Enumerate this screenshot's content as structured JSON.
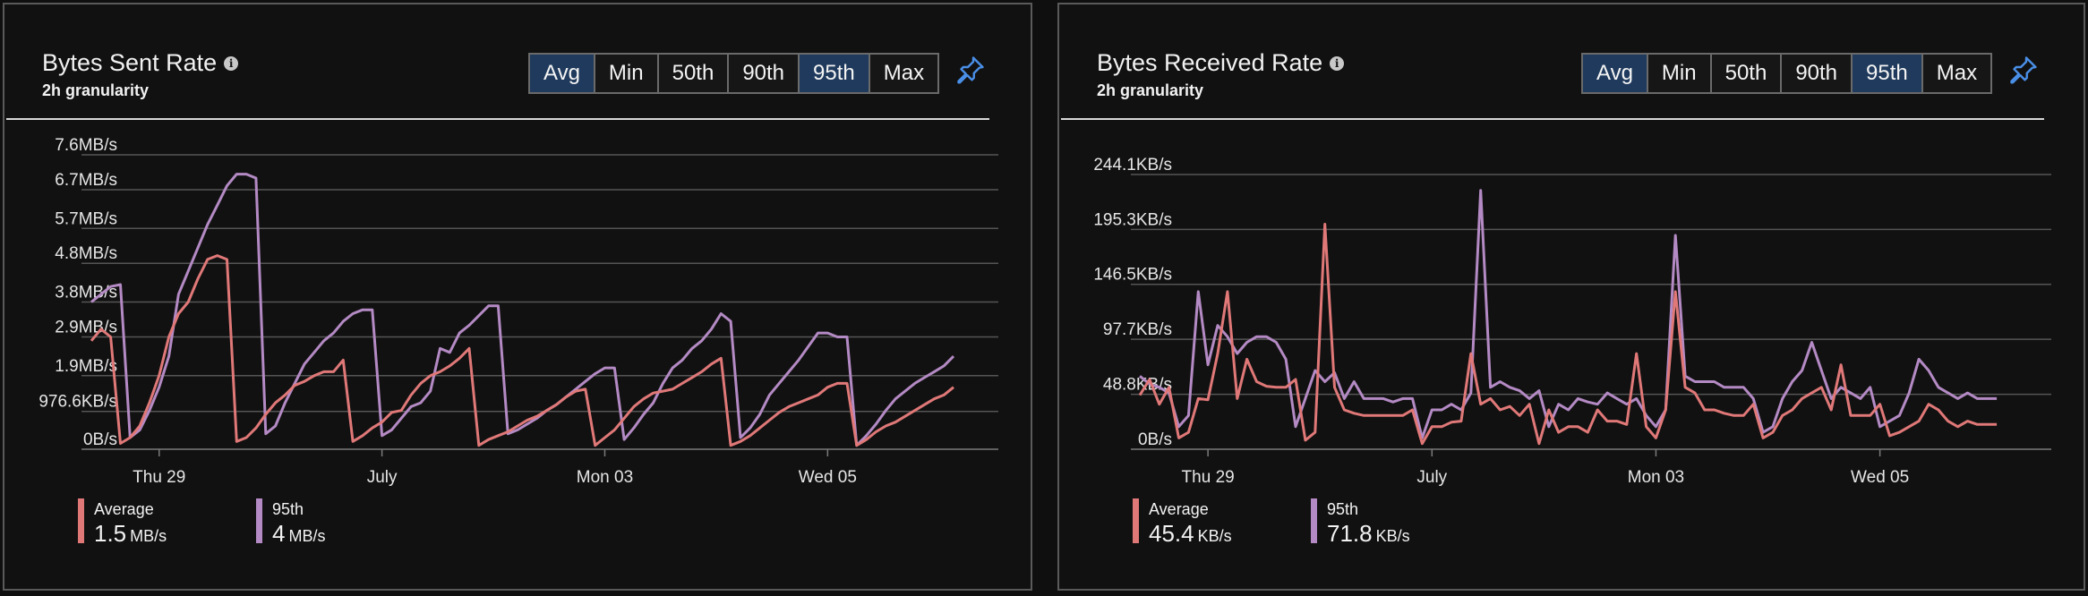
{
  "colors": {
    "average": "#e07878",
    "p95": "#b48ac4",
    "accent": "#1f3a5c",
    "pin": "#4a8fe7"
  },
  "aggregation_buttons": [
    "Avg",
    "Min",
    "50th",
    "90th",
    "95th",
    "Max"
  ],
  "panels": [
    {
      "title": "Bytes Sent Rate",
      "subtitle": "2h granularity",
      "active_buttons": [
        "Avg",
        "95th"
      ],
      "legend": [
        {
          "name": "Average",
          "value": "1.5",
          "unit": "MB/s"
        },
        {
          "name": "95th",
          "value": "4",
          "unit": "MB/s"
        }
      ]
    },
    {
      "title": "Bytes Received Rate",
      "subtitle": "2h granularity",
      "active_buttons": [
        "Avg",
        "95th"
      ],
      "legend": [
        {
          "name": "Average",
          "value": "45.4",
          "unit": "KB/s"
        },
        {
          "name": "95th",
          "value": "71.8",
          "unit": "KB/s"
        }
      ]
    }
  ],
  "chart_data": [
    {
      "type": "line",
      "title": "Bytes Sent Rate",
      "ylabel": "MB/s",
      "ylim": [
        0,
        7.6
      ],
      "yticks": [
        0,
        0.9766,
        1.9,
        2.9,
        3.8,
        4.8,
        5.7,
        6.7,
        7.6
      ],
      "ytick_labels": [
        "0B/s",
        "976.6KB/s",
        "1.9MB/s",
        "2.9MB/s",
        "3.8MB/s",
        "4.8MB/s",
        "5.7MB/s",
        "6.7MB/s",
        "7.6MB/s"
      ],
      "xlim": [
        0,
        89
      ],
      "xticks": [
        7,
        30,
        53,
        76
      ],
      "xtick_labels": [
        "Thu 29",
        "July",
        "Mon 03",
        "Wed 05"
      ],
      "series": [
        {
          "name": "Average",
          "key": "average",
          "values": [
            2.8,
            3.1,
            2.9,
            0.15,
            0.3,
            0.6,
            1.2,
            1.9,
            2.9,
            3.5,
            3.8,
            4.4,
            4.9,
            5.0,
            4.9,
            0.2,
            0.3,
            0.55,
            0.9,
            1.2,
            1.4,
            1.65,
            1.75,
            1.9,
            2.0,
            2.0,
            2.3,
            0.2,
            0.35,
            0.55,
            0.7,
            0.95,
            1.0,
            1.4,
            1.7,
            1.9,
            2.0,
            2.15,
            2.35,
            2.6,
            0.1,
            0.25,
            0.35,
            0.45,
            0.6,
            0.75,
            0.85,
            1.0,
            1.15,
            1.35,
            1.5,
            1.55,
            0.1,
            0.3,
            0.5,
            0.8,
            1.1,
            1.3,
            1.45,
            1.5,
            1.55,
            1.7,
            1.85,
            2.0,
            2.2,
            2.35,
            0.1,
            0.2,
            0.35,
            0.55,
            0.75,
            0.95,
            1.1,
            1.2,
            1.3,
            1.4,
            1.6,
            1.7,
            1.7,
            0.1,
            0.25,
            0.45,
            0.6,
            0.7,
            0.85,
            1.0,
            1.15,
            1.3,
            1.4,
            1.6
          ]
        },
        {
          "name": "95th",
          "key": "p95",
          "values": [
            3.8,
            4.0,
            4.2,
            4.25,
            0.3,
            0.5,
            1.0,
            1.6,
            2.4,
            4.0,
            4.6,
            5.2,
            5.8,
            6.3,
            6.8,
            7.1,
            7.1,
            7.0,
            0.4,
            0.6,
            1.2,
            1.7,
            2.2,
            2.5,
            2.8,
            3.0,
            3.3,
            3.5,
            3.6,
            3.6,
            0.35,
            0.5,
            0.8,
            1.1,
            1.2,
            1.5,
            2.6,
            2.5,
            3.0,
            3.2,
            3.45,
            3.7,
            3.7,
            0.4,
            0.5,
            0.65,
            0.8,
            1.0,
            1.15,
            1.35,
            1.55,
            1.75,
            1.95,
            2.1,
            2.1,
            0.25,
            0.55,
            0.9,
            1.2,
            1.7,
            2.1,
            2.3,
            2.6,
            2.8,
            3.1,
            3.5,
            3.3,
            0.3,
            0.55,
            0.9,
            1.4,
            1.7,
            2.0,
            2.3,
            2.65,
            3.0,
            3.0,
            2.9,
            2.9,
            0.1,
            0.35,
            0.65,
            1.0,
            1.3,
            1.5,
            1.7,
            1.85,
            2.0,
            2.15,
            2.4
          ]
        }
      ]
    },
    {
      "type": "line",
      "title": "Bytes Received Rate",
      "ylabel": "KB/s",
      "ylim": [
        0,
        244.1
      ],
      "yticks": [
        0,
        48.8,
        97.7,
        146.5,
        195.3,
        244.1
      ],
      "ytick_labels": [
        "0B/s",
        "48.8KB/s",
        "97.7KB/s",
        "146.5KB/s",
        "195.3KB/s",
        "244.1KB/s"
      ],
      "xlim": [
        0,
        89
      ],
      "xticks": [
        7,
        30,
        53,
        76
      ],
      "xtick_labels": [
        "Thu 29",
        "July",
        "Mon 03",
        "Wed 05"
      ],
      "series": [
        {
          "name": "Average",
          "key": "average",
          "values": [
            48,
            62,
            40,
            55,
            10,
            15,
            45,
            44,
            85,
            140,
            45,
            80,
            60,
            56,
            55,
            55,
            62,
            8,
            15,
            200,
            55,
            35,
            32,
            30,
            30,
            30,
            30,
            30,
            35,
            5,
            20,
            20,
            24,
            25,
            85,
            40,
            45,
            35,
            38,
            30,
            40,
            5,
            35,
            15,
            20,
            20,
            15,
            35,
            25,
            25,
            22,
            85,
            20,
            10,
            35,
            140,
            55,
            50,
            35,
            35,
            32,
            30,
            30,
            40,
            10,
            15,
            30,
            35,
            45,
            50,
            55,
            35,
            75,
            30,
            30,
            30,
            40,
            12,
            15,
            20,
            25,
            40,
            35,
            25,
            20,
            25,
            22,
            22,
            22
          ]
        },
        {
          "name": "95th",
          "key": "p95",
          "values": [
            65,
            58,
            55,
            50,
            20,
            30,
            140,
            75,
            110,
            100,
            85,
            95,
            100,
            100,
            95,
            80,
            20,
            45,
            70,
            60,
            68,
            45,
            60,
            45,
            45,
            45,
            42,
            45,
            45,
            10,
            35,
            35,
            40,
            35,
            50,
            230,
            55,
            60,
            55,
            52,
            45,
            52,
            20,
            40,
            35,
            45,
            42,
            40,
            50,
            45,
            40,
            45,
            30,
            20,
            35,
            190,
            65,
            60,
            60,
            60,
            55,
            55,
            55,
            45,
            15,
            20,
            45,
            60,
            70,
            95,
            70,
            45,
            55,
            50,
            45,
            55,
            20,
            25,
            30,
            50,
            80,
            70,
            55,
            50,
            45,
            50,
            45,
            45,
            45
          ]
        }
      ]
    }
  ]
}
